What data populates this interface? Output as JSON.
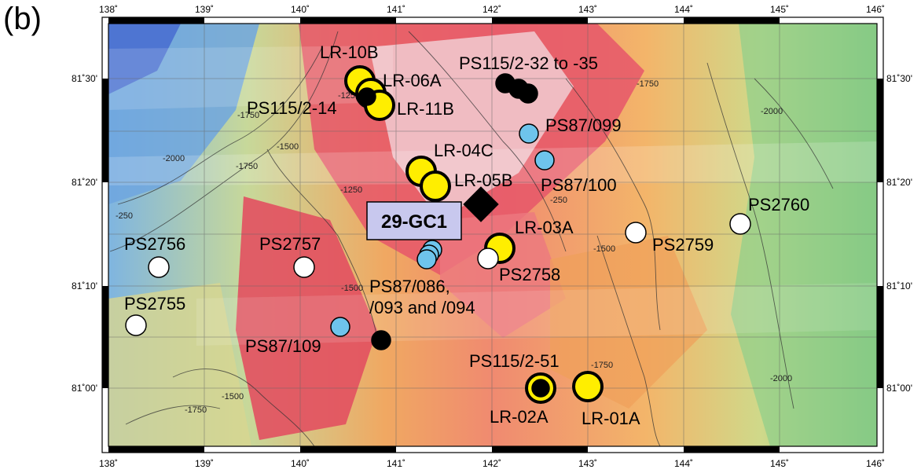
{
  "panel_label": "(b)",
  "lon_ticks": [
    "138˚",
    "139˚",
    "140˚",
    "141˚",
    "142˚",
    "143˚",
    "144˚",
    "145˚",
    "146˚"
  ],
  "lat_ticks": [
    "81˚30'",
    "81˚20'",
    "81˚10'",
    "81˚00'"
  ],
  "contour_labels": [
    "-1750",
    "-2000",
    "-250",
    "-1500",
    "-1750",
    "-1250",
    "-1500",
    "-1250",
    "-1750",
    "-2000",
    "-1500",
    "-1750",
    "-1500",
    "-2000",
    "-1750",
    "-250"
  ],
  "boxed_label": "29-GC1",
  "label_text": {
    "lr10b": "LR-10B",
    "lr06a": "LR-06A",
    "lr11b": "LR-11B",
    "ps115_14": "PS115/2-14",
    "ps115_32": "PS115/2-32 to -35",
    "ps87_099": "PS87/099",
    "lr04c": "LR-04C",
    "lr05b": "LR-05B",
    "ps87_100": "PS87/100",
    "ps2760": "PS2760",
    "lr03a": "LR-03A",
    "ps2759": "PS2759",
    "ps2756": "PS2756",
    "ps2757": "PS2757",
    "ps2758": "PS2758",
    "ps87_086_a": "PS87/086,",
    "ps87_086_b": "/093 and /094",
    "ps2755": "PS2755",
    "ps87_109": "PS87/109",
    "ps115_51": "PS115/2-51",
    "lr02a": "LR-02A",
    "lr01a": "LR-01A"
  },
  "colors": {
    "yellow_core": "#ffee00",
    "blue_core": "#6ec4ec",
    "white_core": "#ffffff",
    "black_core": "#000000",
    "boxed_label_fill": "#c8c8ee"
  }
}
